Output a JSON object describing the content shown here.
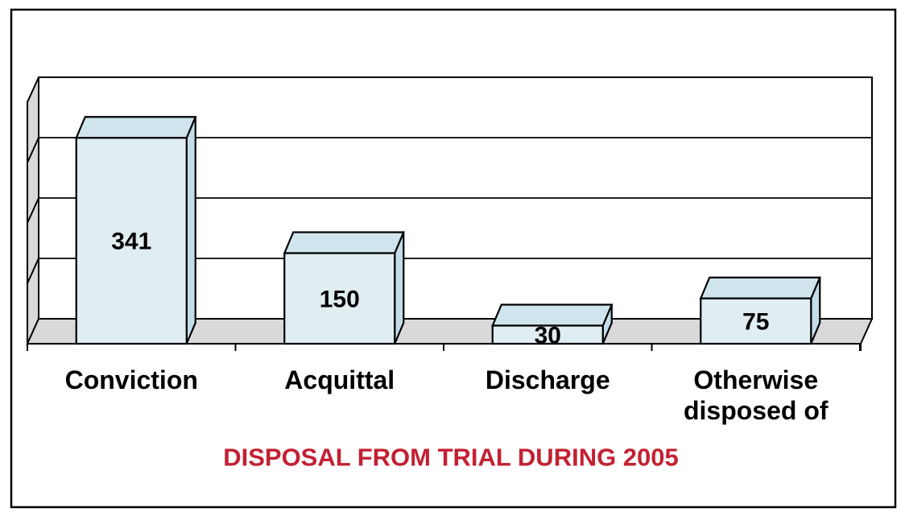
{
  "chart_data": {
    "type": "bar",
    "style": "3d",
    "title": "DISPOSAL FROM TRIAL DURING 2005",
    "categories": [
      "Conviction",
      "Acquittal",
      "Discharge",
      "Otherwise\ndisposed of"
    ],
    "values": [
      341,
      150,
      30,
      75
    ],
    "data_labels_shown": true,
    "xlabel": "",
    "ylabel": "",
    "ylim": [
      0,
      400
    ],
    "grid_step": 100,
    "grid": true,
    "legend": false,
    "y_tick_labels_shown": false,
    "colors": {
      "bar_front": "#E0EDF1",
      "bar_top": "#CFE4ED",
      "bar_side": "#C3DCE8",
      "wall_floor": "#D9D9D9",
      "back_wall": "#FFFFFF",
      "outline": "#000000",
      "title_text": "#C32032",
      "label_text": "#000000"
    }
  }
}
